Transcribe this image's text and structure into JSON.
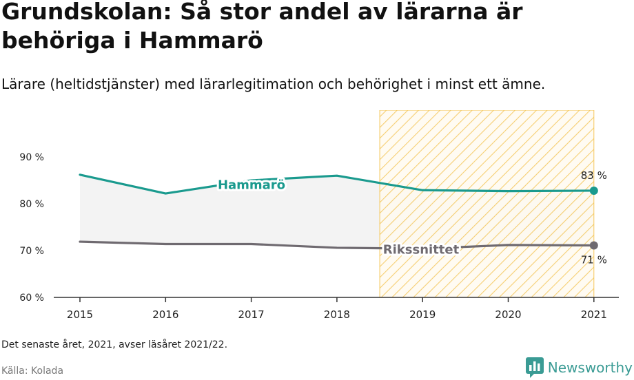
{
  "title": "Grundskolan: Så stor andel av lärarna är behöriga i Hammarö",
  "subtitle": "Lärare (heltidstjänster) med lärarlegitimation och behörighet i minst ett ämne.",
  "note": "Det senaste året, 2021, avser läsåret 2021/22.",
  "source": "Källa: Kolada",
  "brand": "Newsworthy",
  "colors": {
    "hammaro": "#1a9a8e",
    "riket": "#6f6a70",
    "highlight": "#f4c75a",
    "band": "#f3f3f3"
  },
  "chart_data": {
    "type": "line",
    "x": [
      "2015",
      "2016",
      "2017",
      "2018",
      "2019",
      "2020",
      "2021"
    ],
    "y_ticks": [
      "60 %",
      "70 %",
      "80 %",
      "90 %"
    ],
    "ylim": [
      60,
      100
    ],
    "series": [
      {
        "name": "Hammarö",
        "values": [
          86.2,
          82.2,
          85.0,
          86.0,
          82.9,
          82.7,
          82.8
        ],
        "end_label": "83 %"
      },
      {
        "name": "Rikssnittet",
        "values": [
          71.9,
          71.4,
          71.4,
          70.6,
          70.4,
          71.2,
          71.1
        ],
        "end_label": "71 %"
      }
    ],
    "highlight_range": [
      "2018.5",
      "2021"
    ],
    "grid": false
  }
}
